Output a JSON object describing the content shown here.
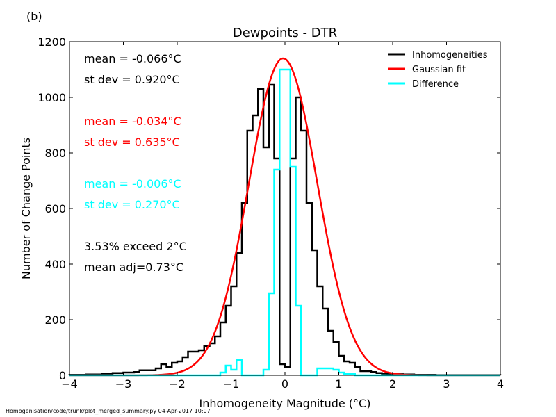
{
  "panel_label": "(b)",
  "footer": "Homogenisation/code/trunk/plot_merged_summary.py   04-Apr-2017 10:07",
  "chart_data": {
    "type": "line",
    "title": "Dewpoints - DTR",
    "xlabel": "Inhomogeneity Magnitude (°C)",
    "ylabel": "Number of Change Points",
    "xlim": [
      -4,
      4
    ],
    "ylim": [
      0,
      1200
    ],
    "xticks": [
      -4,
      -3,
      -2,
      -1,
      0,
      1,
      2,
      3,
      4
    ],
    "yticks": [
      0,
      200,
      400,
      600,
      800,
      1000,
      1200
    ],
    "grid": false,
    "legend_position": "top-right",
    "series": [
      {
        "name": "Inhomogeneities",
        "kind": "step",
        "color": "#000000",
        "bin_edges": [
          -4.0,
          -3.9,
          -3.8,
          -3.7,
          -3.6,
          -3.5,
          -3.4,
          -3.3,
          -3.2,
          -3.1,
          -3.0,
          -2.9,
          -2.8,
          -2.7,
          -2.6,
          -2.5,
          -2.4,
          -2.3,
          -2.2,
          -2.1,
          -2.0,
          -1.9,
          -1.8,
          -1.7,
          -1.6,
          -1.5,
          -1.4,
          -1.3,
          -1.2,
          -1.1,
          -1.0,
          -0.9,
          -0.8,
          -0.7,
          -0.6,
          -0.5,
          -0.4,
          -0.3,
          -0.2,
          -0.1,
          0.0,
          0.1,
          0.2,
          0.3,
          0.4,
          0.5,
          0.6,
          0.7,
          0.8,
          0.9,
          1.0,
          1.1,
          1.2,
          1.3,
          1.4,
          1.5,
          1.6,
          1.7,
          1.8,
          1.9,
          2.0,
          2.1,
          2.2,
          2.3,
          2.4,
          2.5,
          2.6,
          2.7,
          2.8,
          2.9,
          3.0,
          3.1,
          3.2,
          3.3,
          3.4,
          3.5,
          3.6,
          3.7,
          3.8,
          3.9,
          4.0
        ],
        "counts": [
          2,
          2,
          2,
          3,
          3,
          3,
          5,
          5,
          8,
          8,
          10,
          10,
          12,
          18,
          18,
          18,
          25,
          40,
          30,
          45,
          50,
          65,
          85,
          85,
          90,
          105,
          115,
          140,
          190,
          250,
          320,
          440,
          620,
          880,
          935,
          1030,
          820,
          1045,
          780,
          40,
          30,
          780,
          1000,
          880,
          620,
          450,
          320,
          240,
          160,
          120,
          70,
          50,
          45,
          30,
          15,
          15,
          12,
          8,
          6,
          5,
          4,
          4,
          3,
          3,
          2,
          2,
          2,
          2,
          1,
          1,
          1,
          1,
          1,
          1,
          1,
          1,
          1,
          1,
          1,
          1
        ]
      },
      {
        "name": "Gaussian fit",
        "kind": "gaussian",
        "color": "#ff0000",
        "amplitude": 1140,
        "mean": -0.034,
        "sigma": 0.635
      },
      {
        "name": "Difference",
        "kind": "step",
        "color": "#00ffff",
        "bin_edges": [
          -4.0,
          -1.2,
          -1.1,
          -1.0,
          -0.9,
          -0.8,
          -0.7,
          -0.6,
          -0.5,
          -0.4,
          -0.3,
          -0.2,
          -0.1,
          0.0,
          0.1,
          0.2,
          0.3,
          0.4,
          0.5,
          0.6,
          0.7,
          0.8,
          0.9,
          1.0,
          1.1,
          1.2,
          1.3,
          1.4,
          4.0
        ],
        "counts": [
          0,
          10,
          35,
          20,
          55,
          0,
          0,
          0,
          0,
          20,
          295,
          740,
          1100,
          1100,
          750,
          250,
          0,
          0,
          0,
          25,
          25,
          25,
          20,
          10,
          5,
          5,
          0,
          0
        ]
      }
    ],
    "annotations": [
      {
        "text": "mean = -0.066°C",
        "color": "#000000"
      },
      {
        "text": "st dev =  0.920°C",
        "color": "#000000"
      },
      {
        "text": "mean = -0.034°C",
        "color": "#ff0000"
      },
      {
        "text": "st dev =  0.635°C",
        "color": "#ff0000"
      },
      {
        "text": "mean = -0.006°C",
        "color": "#00ffff"
      },
      {
        "text": "st dev =  0.270°C",
        "color": "#00ffff"
      },
      {
        "text": "3.53% exceed 2°C",
        "color": "#000000"
      },
      {
        "text": "mean adj=0.73°C",
        "color": "#000000"
      }
    ]
  }
}
